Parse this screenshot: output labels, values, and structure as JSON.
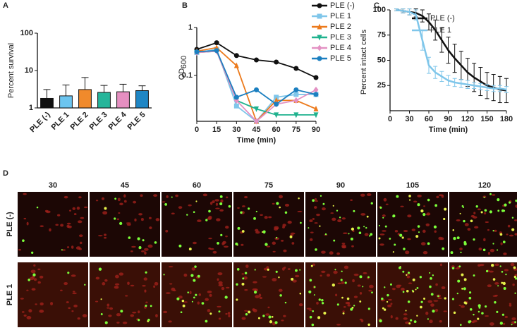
{
  "panel_labels": [
    "A",
    "B",
    "C",
    "D"
  ],
  "chart_data": [
    {
      "type": "bar",
      "ylabel": "Percent survival",
      "log_y": true,
      "ylim": [
        1,
        100
      ],
      "yticks": [
        1,
        10,
        100
      ],
      "categories": [
        "PLE (-)",
        "PLE 1",
        "PLE 2",
        "PLE 3",
        "PLE 4",
        "PLE 5"
      ],
      "values": [
        1.8,
        2.1,
        3.1,
        2.6,
        2.7,
        2.9
      ],
      "errors": [
        1.3,
        2.0,
        3.4,
        1.4,
        1.6,
        1.0
      ],
      "colors": [
        "#111111",
        "#6cc5ef",
        "#f08a2c",
        "#25b59a",
        "#e58fc1",
        "#1f86c4"
      ]
    },
    {
      "type": "line",
      "xlabel": "Time (min)",
      "ylabel": "OD",
      "ylabel_subscript": "600",
      "log_y": true,
      "ylim": [
        0.011,
        1
      ],
      "yticks": [
        0.1,
        1
      ],
      "xlim": [
        0,
        90
      ],
      "xticks": [
        0,
        15,
        30,
        45,
        60,
        75,
        90
      ],
      "x": [
        0,
        15,
        30,
        45,
        60,
        75,
        90
      ],
      "legend": "outside right",
      "series": [
        {
          "name": "PLE (-)",
          "color": "#111111",
          "marker": "circle",
          "values": [
            0.35,
            0.48,
            0.26,
            0.21,
            0.19,
            0.14,
            0.09
          ]
        },
        {
          "name": "PLE 1",
          "color": "#7fc6ea",
          "marker": "square",
          "values": [
            0.3,
            0.35,
            0.023,
            0.011,
            0.035,
            0.04,
            0.04
          ]
        },
        {
          "name": "PLE 2",
          "color": "#ec7a1c",
          "marker": "triangle",
          "values": [
            0.32,
            0.38,
            0.16,
            0.011,
            0.03,
            0.03,
            0.02
          ]
        },
        {
          "name": "PLE 3",
          "color": "#1fb28e",
          "marker": "triangle-down",
          "values": [
            0.3,
            0.32,
            0.03,
            0.02,
            0.015,
            0.015,
            0.015
          ]
        },
        {
          "name": "PLE 4",
          "color": "#e391c3",
          "marker": "diamond",
          "values": [
            0.3,
            0.32,
            0.03,
            0.011,
            0.025,
            0.03,
            0.05
          ]
        },
        {
          "name": "PLE 5",
          "color": "#1b7fc0",
          "marker": "circle",
          "values": [
            0.31,
            0.33,
            0.035,
            0.05,
            0.025,
            0.05,
            0.04
          ]
        }
      ]
    },
    {
      "type": "line",
      "xlabel": "Time (min)",
      "ylabel": "Percent intact cells",
      "ylim": [
        0,
        100
      ],
      "yticks": [
        25,
        50,
        75,
        100
      ],
      "xlim": [
        0,
        180
      ],
      "xticks": [
        0,
        30,
        60,
        90,
        120,
        150,
        180
      ],
      "x": [
        10,
        20,
        30,
        40,
        50,
        60,
        70,
        80,
        90,
        100,
        110,
        120,
        130,
        140,
        150,
        160,
        170,
        180
      ],
      "legend": "upper right",
      "series": [
        {
          "name": "PLE (-)",
          "color": "#111111",
          "values": [
            100,
            99,
            98,
            97,
            94,
            88,
            80,
            70,
            60,
            52,
            45,
            38,
            33,
            29,
            25,
            23,
            21,
            20
          ],
          "errors": [
            1,
            2,
            3,
            4,
            6,
            8,
            10,
            12,
            13,
            14,
            14,
            14,
            14,
            14,
            13,
            13,
            13,
            12
          ]
        },
        {
          "name": "PLE 1",
          "color": "#7fc6ea",
          "values": [
            100,
            99,
            98,
            95,
            70,
            45,
            38,
            34,
            30,
            28,
            27,
            26,
            25,
            24,
            23,
            22,
            22,
            21
          ],
          "errors": [
            1,
            2,
            3,
            5,
            10,
            8,
            6,
            5,
            5,
            4,
            4,
            4,
            3,
            3,
            3,
            3,
            3,
            3
          ]
        }
      ]
    }
  ],
  "micrographs": {
    "columns": [
      "30",
      "45",
      "60",
      "75",
      "90",
      "105",
      "120"
    ],
    "rows": [
      "PLE (-)",
      "PLE 1"
    ]
  }
}
